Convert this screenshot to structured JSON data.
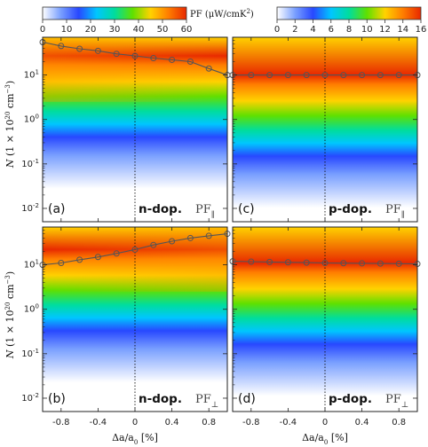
{
  "chart_data": [
    {
      "type": "heatmap",
      "panel_label": "(a)",
      "doping_label": "n-dop.",
      "pf_label": "PF",
      "pf_subscript": "∥",
      "x_values": [
        -1.0,
        -0.8,
        -0.6,
        -0.4,
        -0.2,
        0.0,
        0.2,
        0.4,
        0.6,
        0.8,
        1.0
      ],
      "y_values": [
        55,
        45,
        39,
        35,
        30,
        27,
        24,
        22,
        20,
        14,
        10
      ],
      "colorbar": "left"
    },
    {
      "type": "heatmap",
      "panel_label": "(c)",
      "doping_label": "p-dop.",
      "pf_label": "PF",
      "pf_subscript": "∥",
      "x_values": [
        -1.0,
        -0.8,
        -0.6,
        -0.4,
        -0.2,
        0.0,
        0.2,
        0.4,
        0.6,
        0.8,
        1.0
      ],
      "y_values": [
        10,
        10,
        10,
        10,
        10,
        10,
        10,
        10,
        10,
        10,
        10
      ],
      "colorbar": "right"
    },
    {
      "type": "heatmap",
      "panel_label": "(b)",
      "doping_label": "n-dop.",
      "pf_label": "PF",
      "pf_subscript": "⊥",
      "x_values": [
        -1.0,
        -0.8,
        -0.6,
        -0.4,
        -0.2,
        0.0,
        0.2,
        0.4,
        0.6,
        0.8,
        1.0
      ],
      "y_values": [
        10,
        11,
        13,
        15,
        18,
        22,
        28,
        34,
        40,
        45,
        50
      ],
      "colorbar": "left"
    },
    {
      "type": "heatmap",
      "panel_label": "(d)",
      "doping_label": "p-dop.",
      "pf_label": "PF",
      "pf_subscript": "⊥",
      "x_values": [
        -1.0,
        -0.8,
        -0.6,
        -0.4,
        -0.2,
        0.0,
        0.2,
        0.4,
        0.6,
        0.8,
        1.0
      ],
      "y_values": [
        12,
        11.8,
        11.6,
        11.4,
        11.2,
        11,
        10.9,
        10.8,
        10.7,
        10.6,
        10.5
      ],
      "colorbar": "right"
    }
  ],
  "colorbars": {
    "left": {
      "ticks": [
        "0",
        "10",
        "20",
        "30",
        "40",
        "50",
        "60"
      ],
      "range": [
        0,
        60
      ]
    },
    "right": {
      "ticks": [
        "0",
        "2",
        "4",
        "6",
        "8",
        "10",
        "12",
        "14",
        "16"
      ],
      "range": [
        0,
        16
      ]
    },
    "title": "PF (μW/cmK",
    "title_sup": "2",
    "title_end": ")"
  },
  "axes": {
    "xlabel_main": "Δa/a",
    "xlabel_sub": "0",
    "xlabel_end": " [%]",
    "x_ticks": [
      "-0.8",
      "-0.4",
      "0",
      "0.4",
      "0.8"
    ],
    "x_range": [
      -1.0,
      1.0
    ],
    "ylabel_main": "N",
    "ylabel_rest": " (1 × 10",
    "ylabel_sup1": "20",
    "ylabel_mid": " cm",
    "ylabel_sup2": "−3",
    "ylabel_end": ")",
    "y_ticks": [
      {
        "base": "10",
        "exp": "1"
      },
      {
        "base": "10",
        "exp": "0"
      },
      {
        "base": "10",
        "exp": "-1"
      },
      {
        "base": "10",
        "exp": "-2"
      }
    ],
    "y_log_range": [
      -2.3,
      1.85
    ],
    "y_scale": "log"
  },
  "colors": {
    "colormap": [
      "#ffffff",
      "#7aa0ff",
      "#2848ff",
      "#00c6ff",
      "#00dd9e",
      "#5fe000",
      "#ffd200",
      "#ff7d00",
      "#e82800"
    ],
    "curve": "#555555"
  }
}
